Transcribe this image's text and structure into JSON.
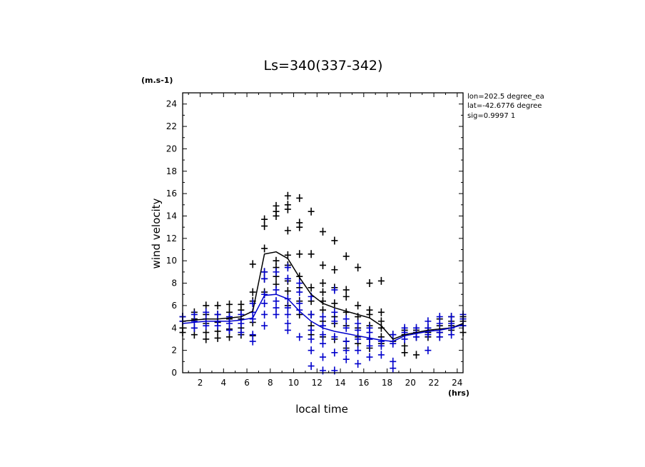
{
  "chart_data": {
    "type": "scatter",
    "title": "Ls=340(337-342)",
    "ylabel": "wind velocity",
    "xlabel": "local time",
    "y_unit": "(m.s-1)",
    "x_unit": "(hrs)",
    "xlim": [
      0.5,
      24.5
    ],
    "ylim": [
      0,
      25
    ],
    "x_ticks": [
      2,
      4,
      6,
      8,
      10,
      12,
      14,
      16,
      18,
      20,
      22,
      24
    ],
    "y_ticks": [
      0,
      2,
      4,
      6,
      8,
      10,
      12,
      14,
      16,
      18,
      20,
      22,
      24
    ],
    "annotations": [
      "lon=202.5 degree_ea",
      "lat=-42.6776 degree",
      "sig=0.9997 1"
    ],
    "colors": {
      "black_series": "#000000",
      "blue_series": "#0000cc"
    },
    "series": [
      {
        "color": "black",
        "marker": "plus",
        "mean_line": {
          "x": [
            0.5,
            1.5,
            2.5,
            3.5,
            4.5,
            5.5,
            6.5,
            7.5,
            8.5,
            9.5,
            10.5,
            11.5,
            12.5,
            13.5,
            14.5,
            15.5,
            16.5,
            17.5,
            18.5,
            19.5,
            20.5,
            21.5,
            22.5,
            23.5,
            24.5
          ],
          "y": [
            4.6,
            4.7,
            4.8,
            4.8,
            4.9,
            5.0,
            5.5,
            10.6,
            10.8,
            10.2,
            8.5,
            7.0,
            6.2,
            5.8,
            5.5,
            5.2,
            4.9,
            4.2,
            3.0,
            3.4,
            3.6,
            3.8,
            3.9,
            4.0,
            4.4
          ]
        },
        "points": [
          [
            0.5,
            3.6
          ],
          [
            0.5,
            4.0
          ],
          [
            0.5,
            4.6
          ],
          [
            0.5,
            5.0
          ],
          [
            1.5,
            3.4
          ],
          [
            1.5,
            4.0
          ],
          [
            1.5,
            4.8
          ],
          [
            1.5,
            5.4
          ],
          [
            2.5,
            3.0
          ],
          [
            2.5,
            3.6
          ],
          [
            2.5,
            4.4
          ],
          [
            2.5,
            5.2
          ],
          [
            2.5,
            6.0
          ],
          [
            3.5,
            3.1
          ],
          [
            3.5,
            3.7
          ],
          [
            3.5,
            4.5
          ],
          [
            3.5,
            5.2
          ],
          [
            3.5,
            6.0
          ],
          [
            4.5,
            3.2
          ],
          [
            4.5,
            3.9
          ],
          [
            4.5,
            4.8
          ],
          [
            4.5,
            5.4
          ],
          [
            4.5,
            6.1
          ],
          [
            5.5,
            3.4
          ],
          [
            5.5,
            4.0
          ],
          [
            5.5,
            4.8
          ],
          [
            5.5,
            5.6
          ],
          [
            5.5,
            6.1
          ],
          [
            6.5,
            3.3
          ],
          [
            6.5,
            4.5
          ],
          [
            6.5,
            6.4
          ],
          [
            6.5,
            7.2
          ],
          [
            6.5,
            9.7
          ],
          [
            7.5,
            7.2
          ],
          [
            7.5,
            8.4
          ],
          [
            7.5,
            9.0
          ],
          [
            7.5,
            11.1
          ],
          [
            7.5,
            13.1
          ],
          [
            7.5,
            13.7
          ],
          [
            8.5,
            7.9
          ],
          [
            8.5,
            8.6
          ],
          [
            8.5,
            9.4
          ],
          [
            8.5,
            10.0
          ],
          [
            8.5,
            14.0
          ],
          [
            8.5,
            14.4
          ],
          [
            8.5,
            14.9
          ],
          [
            9.5,
            6.0
          ],
          [
            9.5,
            7.3
          ],
          [
            9.5,
            8.2
          ],
          [
            9.5,
            9.6
          ],
          [
            9.5,
            10.5
          ],
          [
            9.5,
            12.7
          ],
          [
            9.5,
            14.6
          ],
          [
            9.5,
            15.0
          ],
          [
            9.5,
            15.8
          ],
          [
            10.5,
            5.2
          ],
          [
            10.5,
            6.4
          ],
          [
            10.5,
            7.6
          ],
          [
            10.5,
            8.6
          ],
          [
            10.5,
            10.6
          ],
          [
            10.5,
            13.0
          ],
          [
            10.5,
            13.4
          ],
          [
            10.5,
            15.6
          ],
          [
            11.5,
            3.4
          ],
          [
            11.5,
            4.2
          ],
          [
            11.5,
            5.2
          ],
          [
            11.5,
            6.4
          ],
          [
            11.5,
            7.6
          ],
          [
            11.5,
            10.6
          ],
          [
            11.5,
            14.4
          ],
          [
            12.5,
            3.2
          ],
          [
            12.5,
            4.6
          ],
          [
            12.5,
            5.6
          ],
          [
            12.5,
            6.4
          ],
          [
            12.5,
            7.2
          ],
          [
            12.5,
            8.0
          ],
          [
            12.5,
            9.6
          ],
          [
            12.5,
            12.6
          ],
          [
            13.5,
            3.0
          ],
          [
            13.5,
            4.4
          ],
          [
            13.5,
            5.0
          ],
          [
            13.5,
            6.2
          ],
          [
            13.5,
            7.6
          ],
          [
            13.5,
            9.2
          ],
          [
            13.5,
            11.8
          ],
          [
            14.5,
            2.2
          ],
          [
            14.5,
            2.8
          ],
          [
            14.5,
            4.2
          ],
          [
            14.5,
            5.4
          ],
          [
            14.5,
            6.8
          ],
          [
            14.5,
            7.4
          ],
          [
            14.5,
            10.4
          ],
          [
            15.5,
            2.6
          ],
          [
            15.5,
            3.2
          ],
          [
            15.5,
            4.0
          ],
          [
            15.5,
            5.0
          ],
          [
            15.5,
            6.0
          ],
          [
            15.5,
            9.4
          ],
          [
            16.5,
            2.2
          ],
          [
            16.5,
            3.0
          ],
          [
            16.5,
            4.2
          ],
          [
            16.5,
            5.2
          ],
          [
            16.5,
            5.6
          ],
          [
            16.5,
            8.0
          ],
          [
            17.5,
            2.6
          ],
          [
            17.5,
            3.2
          ],
          [
            17.5,
            4.0
          ],
          [
            17.5,
            4.6
          ],
          [
            17.5,
            5.4
          ],
          [
            17.5,
            8.2
          ],
          [
            18.5,
            2.8
          ],
          [
            18.5,
            3.4
          ],
          [
            19.5,
            1.8
          ],
          [
            19.5,
            2.4
          ],
          [
            19.5,
            3.4
          ],
          [
            19.5,
            3.8
          ],
          [
            20.5,
            1.6
          ],
          [
            20.5,
            3.2
          ],
          [
            20.5,
            3.8
          ],
          [
            21.5,
            3.2
          ],
          [
            21.5,
            3.6
          ],
          [
            21.5,
            4.0
          ],
          [
            22.5,
            3.2
          ],
          [
            22.5,
            3.6
          ],
          [
            22.5,
            4.2
          ],
          [
            22.5,
            4.8
          ],
          [
            23.5,
            3.8
          ],
          [
            23.5,
            4.2
          ],
          [
            23.5,
            4.6
          ],
          [
            23.5,
            5.0
          ],
          [
            24.5,
            3.6
          ],
          [
            24.5,
            4.2
          ],
          [
            24.5,
            4.6
          ],
          [
            24.5,
            5.0
          ]
        ]
      },
      {
        "color": "blue",
        "marker": "plus",
        "mean_line": {
          "x": [
            0.5,
            1.5,
            2.5,
            3.5,
            4.5,
            5.5,
            6.5,
            7.5,
            8.5,
            9.5,
            10.5,
            11.5,
            12.5,
            13.5,
            14.5,
            15.5,
            16.5,
            17.5,
            18.5,
            19.5,
            20.5,
            21.5,
            22.5,
            23.5,
            24.5
          ],
          "y": [
            4.4,
            4.5,
            4.6,
            4.6,
            4.6,
            4.7,
            4.9,
            6.9,
            7.0,
            6.6,
            5.5,
            4.6,
            4.0,
            3.7,
            3.5,
            3.3,
            3.1,
            2.9,
            2.8,
            3.3,
            3.5,
            3.7,
            3.8,
            4.0,
            4.3
          ]
        },
        "points": [
          [
            0.5,
            4.6
          ],
          [
            0.5,
            5.0
          ],
          [
            1.5,
            4.0
          ],
          [
            1.5,
            4.6
          ],
          [
            1.5,
            5.2
          ],
          [
            2.5,
            4.2
          ],
          [
            2.5,
            4.8
          ],
          [
            2.5,
            5.4
          ],
          [
            3.5,
            4.2
          ],
          [
            3.5,
            4.6
          ],
          [
            3.5,
            5.2
          ],
          [
            4.5,
            3.8
          ],
          [
            4.5,
            4.4
          ],
          [
            4.5,
            5.0
          ],
          [
            5.5,
            3.6
          ],
          [
            5.5,
            4.4
          ],
          [
            5.5,
            5.2
          ],
          [
            6.5,
            2.8
          ],
          [
            6.5,
            3.4
          ],
          [
            6.5,
            4.8
          ],
          [
            6.5,
            5.4
          ],
          [
            6.5,
            6.2
          ],
          [
            7.5,
            4.2
          ],
          [
            7.5,
            5.2
          ],
          [
            7.5,
            6.2
          ],
          [
            7.5,
            7.0
          ],
          [
            7.5,
            8.4
          ],
          [
            7.5,
            9.0
          ],
          [
            8.5,
            5.2
          ],
          [
            8.5,
            5.8
          ],
          [
            8.5,
            6.4
          ],
          [
            8.5,
            7.4
          ],
          [
            8.5,
            9.0
          ],
          [
            9.5,
            3.8
          ],
          [
            9.5,
            4.4
          ],
          [
            9.5,
            5.2
          ],
          [
            9.5,
            5.8
          ],
          [
            9.5,
            6.6
          ],
          [
            9.5,
            8.4
          ],
          [
            9.5,
            9.4
          ],
          [
            10.5,
            3.2
          ],
          [
            10.5,
            5.6
          ],
          [
            10.5,
            6.2
          ],
          [
            10.5,
            7.2
          ],
          [
            10.5,
            8.0
          ],
          [
            11.5,
            0.6
          ],
          [
            11.5,
            2.0
          ],
          [
            11.5,
            3.0
          ],
          [
            11.5,
            3.8
          ],
          [
            11.5,
            5.2
          ],
          [
            11.5,
            6.8
          ],
          [
            12.5,
            0.2
          ],
          [
            12.5,
            1.4
          ],
          [
            12.5,
            2.6
          ],
          [
            12.5,
            3.4
          ],
          [
            12.5,
            4.2
          ],
          [
            12.5,
            5.0
          ],
          [
            13.5,
            0.2
          ],
          [
            13.5,
            1.8
          ],
          [
            13.5,
            3.2
          ],
          [
            13.5,
            4.6
          ],
          [
            13.5,
            5.4
          ],
          [
            13.5,
            7.4
          ],
          [
            14.5,
            1.2
          ],
          [
            14.5,
            2.0
          ],
          [
            14.5,
            2.8
          ],
          [
            14.5,
            4.0
          ],
          [
            14.5,
            4.8
          ],
          [
            15.5,
            0.8
          ],
          [
            15.5,
            2.0
          ],
          [
            15.5,
            3.0
          ],
          [
            15.5,
            3.8
          ],
          [
            15.5,
            4.4
          ],
          [
            16.5,
            1.4
          ],
          [
            16.5,
            2.4
          ],
          [
            16.5,
            3.0
          ],
          [
            16.5,
            3.6
          ],
          [
            16.5,
            4.0
          ],
          [
            17.5,
            1.6
          ],
          [
            17.5,
            2.4
          ],
          [
            17.5,
            2.8
          ],
          [
            18.5,
            0.4
          ],
          [
            18.5,
            1.0
          ],
          [
            18.5,
            2.6
          ],
          [
            18.5,
            3.4
          ],
          [
            19.5,
            3.0
          ],
          [
            19.5,
            3.6
          ],
          [
            19.5,
            4.0
          ],
          [
            20.5,
            3.2
          ],
          [
            20.5,
            3.6
          ],
          [
            20.5,
            4.0
          ],
          [
            21.5,
            2.0
          ],
          [
            21.5,
            3.4
          ],
          [
            21.5,
            4.0
          ],
          [
            21.5,
            4.6
          ],
          [
            22.5,
            3.2
          ],
          [
            22.5,
            3.6
          ],
          [
            22.5,
            4.4
          ],
          [
            22.5,
            5.0
          ],
          [
            23.5,
            3.4
          ],
          [
            23.5,
            4.0
          ],
          [
            23.5,
            4.4
          ],
          [
            23.5,
            5.0
          ],
          [
            24.5,
            4.2
          ],
          [
            24.5,
            4.8
          ],
          [
            24.5,
            5.2
          ]
        ]
      }
    ]
  }
}
